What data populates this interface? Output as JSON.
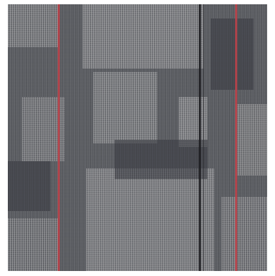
{
  "image": {
    "subject": "carpet-tile",
    "colors": {
      "base": "#5f6166",
      "light_block": "#8a8a8c",
      "dark_block": "#4e5159",
      "accent_red": "#b8424a",
      "accent_black": "#1c1c20",
      "border": "#ffffff"
    }
  }
}
